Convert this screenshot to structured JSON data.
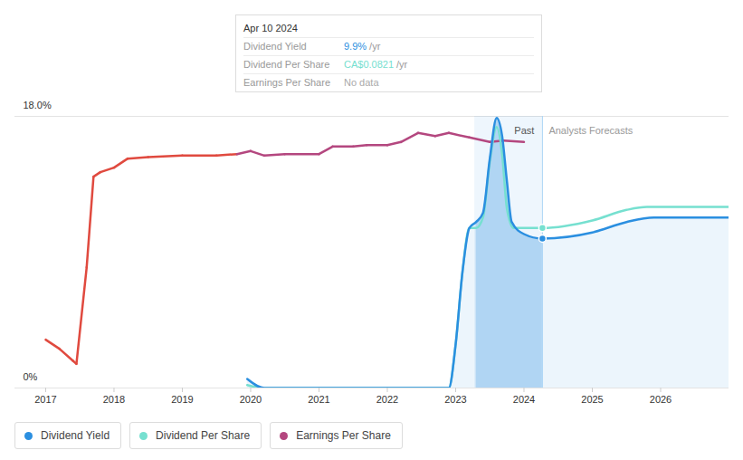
{
  "chart_data": {
    "type": "line",
    "xlim": [
      2016.55,
      2027.0
    ],
    "xticks": [
      2017,
      2018,
      2019,
      2020,
      2021,
      2022,
      2023,
      2024,
      2025,
      2026
    ],
    "ylim": [
      0,
      18
    ],
    "yticks": [
      {
        "value": 0,
        "label": "0%"
      },
      {
        "value": 18,
        "label": "18.0%"
      }
    ],
    "grid": true,
    "series": [
      {
        "name": "Dividend Yield",
        "color": "#2b8fe0",
        "x": [
          2019.95,
          2020.2,
          2021.0,
          2022.0,
          2022.9,
          2023.0,
          2023.1,
          2023.2,
          2023.3,
          2023.4,
          2023.5,
          2023.6,
          2023.68,
          2023.75,
          2023.82,
          2024.0,
          2024.27,
          2025.0,
          2025.5,
          2025.9,
          2027.0
        ],
        "values": [
          0.6,
          0,
          0,
          0,
          0,
          2.9,
          7.7,
          10.6,
          11.0,
          11.6,
          15.2,
          17.9,
          16.7,
          13.7,
          11.0,
          10.2,
          9.9,
          10.3,
          11.0,
          11.3,
          11.3
        ]
      },
      {
        "name": "Dividend Per Share",
        "color": "#76e0d0",
        "x": [
          2019.95,
          2020.2,
          2021.0,
          2022.0,
          2022.9,
          2023.0,
          2023.1,
          2023.2,
          2023.3,
          2023.4,
          2023.5,
          2023.6,
          2023.68,
          2023.75,
          2023.85,
          2024.0,
          2024.27,
          2025.0,
          2025.5,
          2025.8,
          2027.0
        ],
        "values": [
          0.2,
          0,
          0,
          0,
          0,
          2.9,
          7.7,
          10.6,
          10.6,
          11.3,
          15.0,
          17.3,
          15.5,
          11.9,
          10.6,
          10.6,
          10.6,
          11.1,
          11.8,
          12.0,
          12.0
        ]
      },
      {
        "name": "Earnings Per Share",
        "color": "#b4477f",
        "x": [
          2017.0,
          2017.2,
          2017.4,
          2017.45,
          2017.6,
          2017.7,
          2017.8,
          2018.0,
          2018.2,
          2018.5,
          2019.0,
          2019.5,
          2019.8,
          2020.0,
          2020.2,
          2020.5,
          2021.0,
          2021.2,
          2021.5,
          2021.7,
          2022.0,
          2022.2,
          2022.45,
          2022.7,
          2022.9,
          2023.2,
          2023.5,
          2023.7,
          2024.0
        ],
        "values": [
          3.2,
          2.6,
          1.8,
          1.6,
          8.0,
          14.0,
          14.3,
          14.6,
          15.2,
          15.3,
          15.4,
          15.4,
          15.5,
          15.7,
          15.4,
          15.5,
          15.5,
          16.0,
          16.0,
          16.1,
          16.1,
          16.3,
          16.9,
          16.7,
          16.9,
          16.6,
          16.3,
          16.4,
          16.3
        ],
        "colors": [
          "#e04a3f",
          "#e04a3f",
          "#e04a3f",
          "#e04a3f",
          "#e04a3f",
          "#e04a3f",
          "#e04a3f",
          "#e04a3f",
          "#e04a3f",
          "#e04a3f",
          "#e04a3f",
          "#e04a3f",
          "#e04a3f",
          "#b4477f",
          "#b4477f",
          "#b4477f",
          "#b4477f",
          "#b4477f",
          "#b4477f",
          "#b4477f",
          "#b4477f",
          "#b4477f",
          "#b4477f",
          "#b4477f",
          "#b4477f",
          "#b4477f",
          "#b4477f",
          "#b4477f",
          "#b4477f"
        ]
      }
    ],
    "past_band": {
      "x_start": 2023.28,
      "x_end": 2024.27,
      "label": "Past"
    },
    "forecast_label": "Analysts Forecasts",
    "tooltip": {
      "x": 2024.27,
      "date": "Apr 10 2024",
      "rows": [
        {
          "label": "Dividend Yield",
          "value": "9.9%",
          "unit": "/yr"
        },
        {
          "label": "Dividend Per Share",
          "value": "CA$0.0821",
          "unit": "/yr"
        },
        {
          "label": "Earnings Per Share",
          "value": "No data"
        }
      ]
    }
  }
}
